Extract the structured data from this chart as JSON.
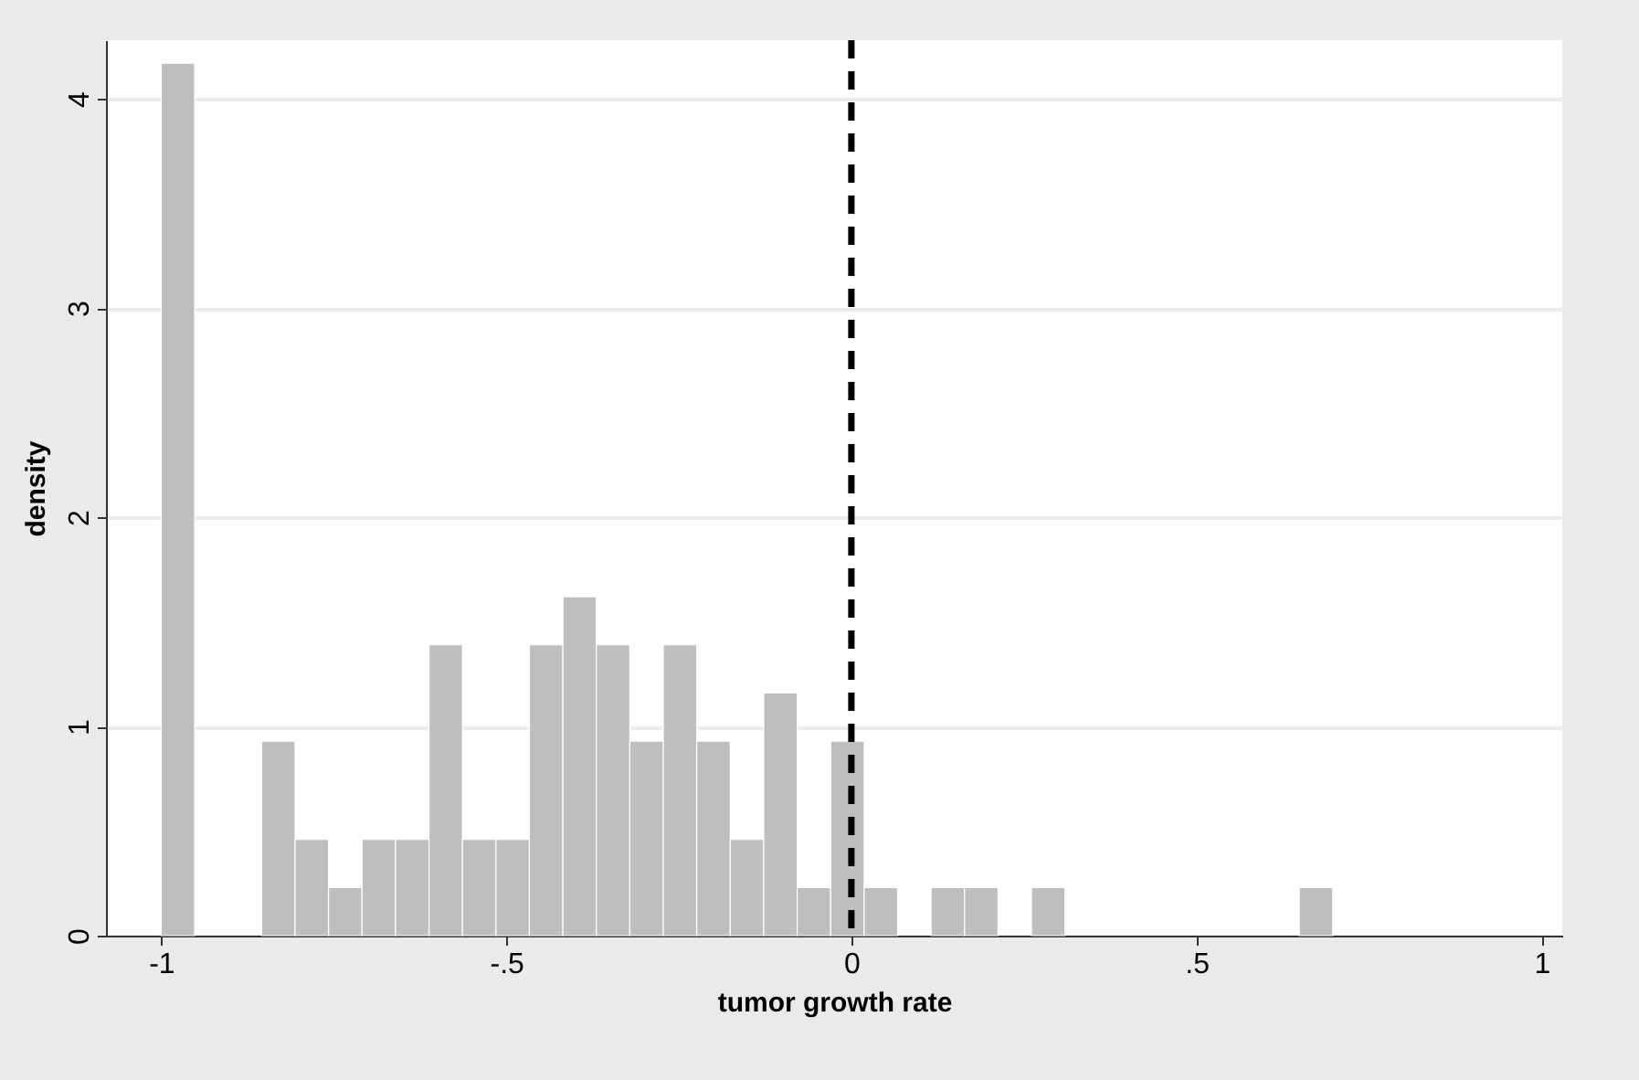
{
  "chart_data": {
    "type": "histogram",
    "xlabel": "tumor growth rate",
    "ylabel": "density",
    "bins": [
      -1,
      -0.9515,
      -0.903,
      -0.8545,
      -0.806,
      -0.7575,
      -0.709,
      -0.6605,
      -0.612,
      -0.5635,
      -0.515,
      -0.4665,
      -0.418,
      -0.3695,
      -0.321,
      -0.2725,
      -0.224,
      -0.1755,
      -0.127,
      -0.0785,
      -0.03,
      0.0185,
      0.067,
      0.1155,
      0.164,
      0.2125,
      0.261,
      0.3095,
      0.358,
      0.4065,
      0.455,
      0.5035,
      0.552,
      0.6005,
      0.649,
      0.6975
    ],
    "values": [
      4.17,
      0,
      0,
      0.93,
      0.46,
      0.23,
      0.46,
      0.46,
      1.39,
      0.46,
      0.46,
      1.39,
      1.62,
      1.39,
      0.93,
      1.39,
      0.93,
      0.46,
      1.16,
      0.23,
      0.93,
      0.23,
      0,
      0.23,
      0.23,
      0,
      0.23,
      0,
      0,
      0,
      0,
      0,
      0,
      0,
      0.23
    ],
    "color": "#bebebe",
    "xlim": [
      -1.08,
      1.03
    ],
    "xticks": [
      {
        "value": -1,
        "label": "-1"
      },
      {
        "value": -0.5,
        "label": "-.5"
      },
      0,
      {
        "value": 0.5,
        "label": ".5"
      },
      1
    ],
    "ylim": [
      0,
      4.28
    ],
    "yticks": [
      0,
      1,
      2,
      3,
      4
    ],
    "grid": "y",
    "ref_lines": [
      {
        "axis": "x",
        "value": 0,
        "color": "#000000",
        "line_style": "dashed"
      }
    ]
  }
}
